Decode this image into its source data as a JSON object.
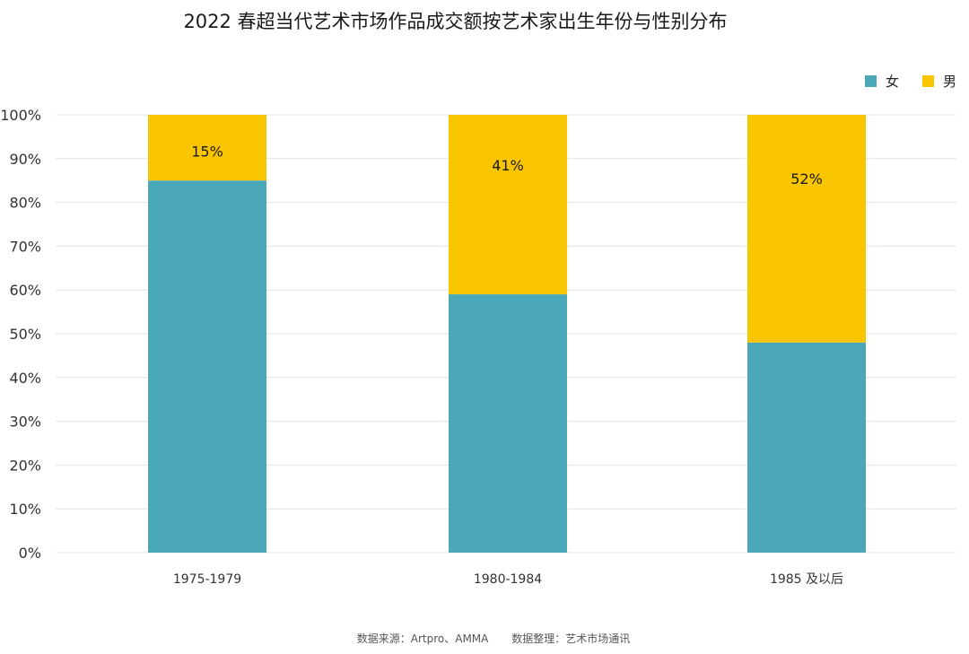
{
  "title": "2022 春超当代艺术市场作品成交额按艺术家出生年份与性别分布",
  "source": {
    "data_source": "数据来源：Artpro、AMMA",
    "compiled_by": "数据整理：艺术市场通讯"
  },
  "colors": {
    "female": "#4aa8b9",
    "male": "#f9c400",
    "grid": "#e3e3e3",
    "axis_text": "#333333"
  },
  "chart_data": {
    "type": "bar",
    "stacked": true,
    "title": "2022 春超当代艺术市场作品成交额按艺术家出生年份与性别分布",
    "categories": [
      "1975-1979",
      "1980-1984",
      "1985 及以后"
    ],
    "series": [
      {
        "name": "女",
        "values": [
          85,
          59,
          48
        ]
      },
      {
        "name": "男",
        "values": [
          15,
          41,
          52
        ]
      }
    ],
    "data_labels": [
      "15%",
      "41%",
      "52%"
    ],
    "yticks": [
      "0%",
      "10%",
      "20%",
      "30%",
      "40%",
      "50%",
      "60%",
      "70%",
      "80%",
      "90%",
      "100%"
    ],
    "ylim": [
      0,
      100
    ],
    "grid": true,
    "legend_position": "top-right"
  }
}
